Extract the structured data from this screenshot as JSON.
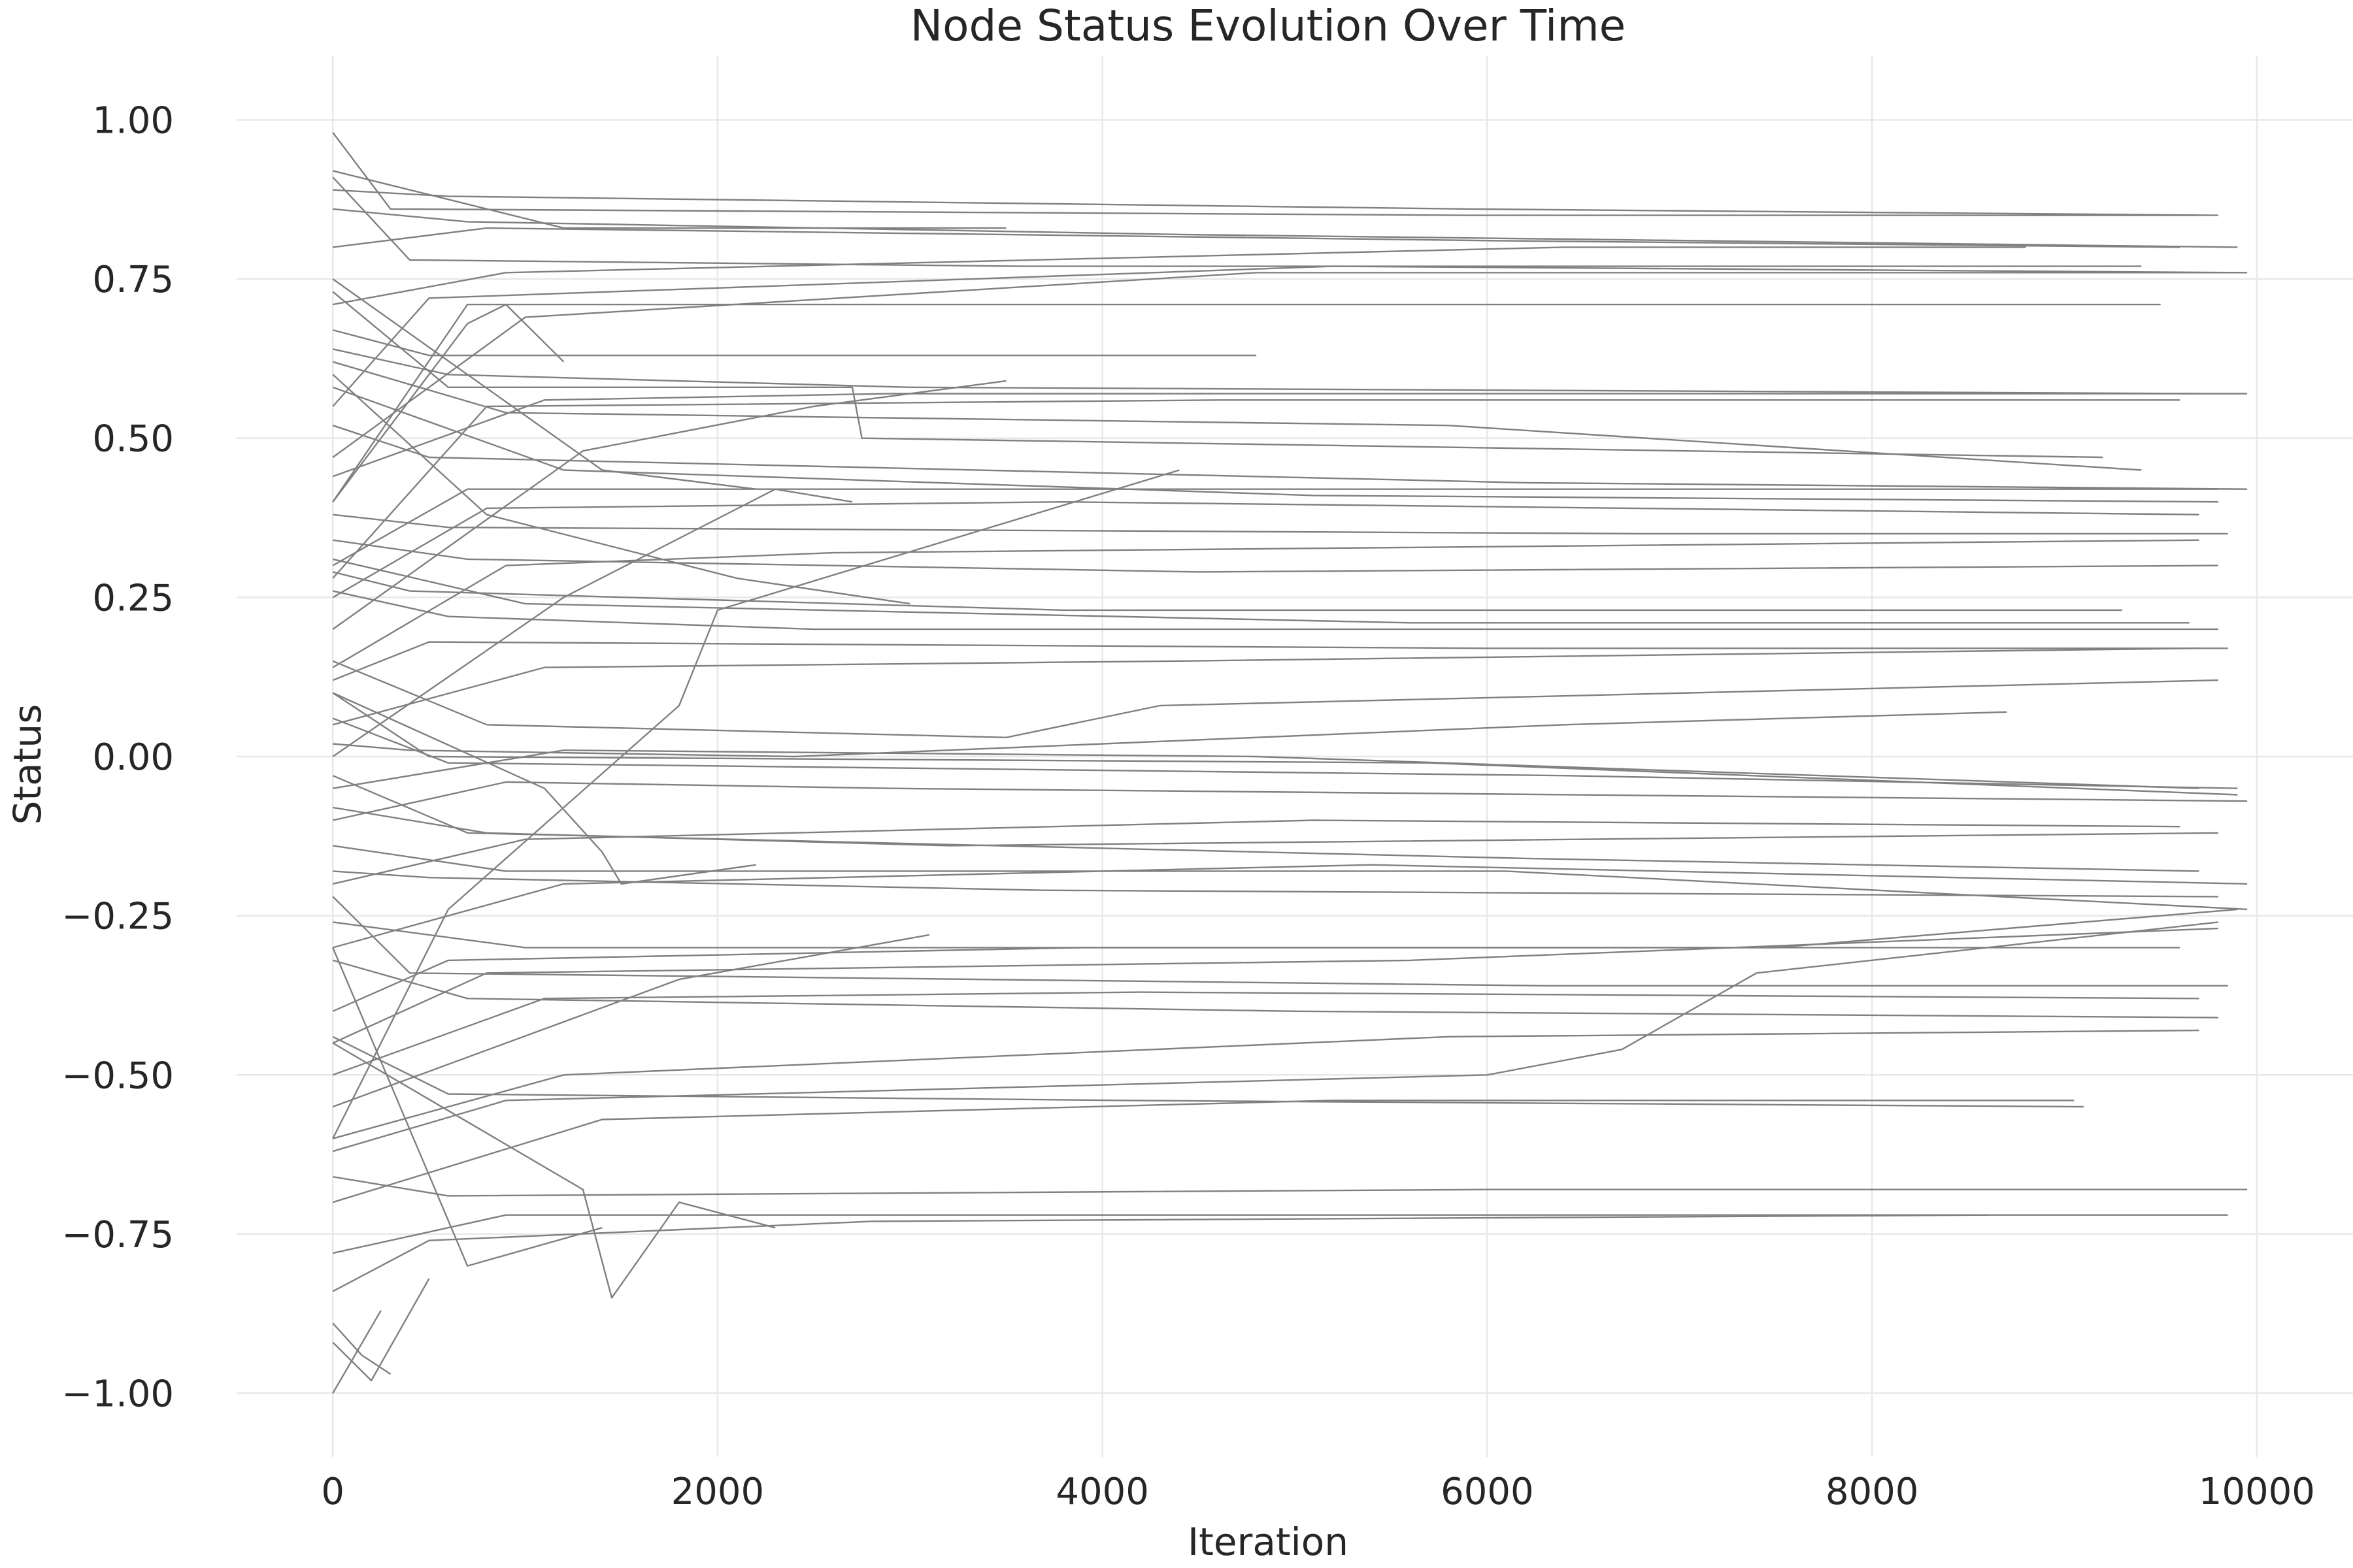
{
  "chart_data": {
    "type": "line",
    "title": "Node Status Evolution Over Time",
    "xlabel": "Iteration",
    "ylabel": "Status",
    "xlim": [
      -500,
      10500
    ],
    "ylim": [
      -1.1,
      1.1
    ],
    "xticks": [
      0,
      2000,
      4000,
      6000,
      8000,
      10000
    ],
    "xtick_labels": [
      "0",
      "2000",
      "4000",
      "6000",
      "8000",
      "10000"
    ],
    "yticks": [
      1.0,
      0.75,
      0.5,
      0.25,
      0.0,
      -0.25,
      -0.5,
      -0.75,
      -1.0
    ],
    "ytick_labels": [
      "1.00",
      "0.75",
      "0.50",
      "0.25",
      "0.00",
      "−0.25",
      "−0.50",
      "−0.75",
      "−1.00"
    ],
    "grid": true,
    "line_color": "#808080",
    "series": [
      {
        "x": [
          0,
          600,
          5900,
          9800
        ],
        "y": [
          0.89,
          0.88,
          0.86,
          0.85
        ]
      },
      {
        "x": [
          0,
          300,
          5900,
          9700
        ],
        "y": [
          0.98,
          0.86,
          0.85,
          0.85
        ]
      },
      {
        "x": [
          0,
          800,
          6100,
          9600
        ],
        "y": [
          0.8,
          0.83,
          0.81,
          0.8
        ]
      },
      {
        "x": [
          0,
          1200,
          3500
        ],
        "y": [
          0.92,
          0.83,
          0.83
        ]
      },
      {
        "x": [
          0,
          700,
          4400,
          9900
        ],
        "y": [
          0.86,
          0.84,
          0.82,
          0.8
        ]
      },
      {
        "x": [
          0,
          900,
          6400,
          8800
        ],
        "y": [
          0.71,
          0.76,
          0.8,
          0.8
        ]
      },
      {
        "x": [
          0,
          500,
          5200,
          9900
        ],
        "y": [
          0.55,
          0.72,
          0.77,
          0.76
        ]
      },
      {
        "x": [
          0,
          400,
          3600,
          9400
        ],
        "y": [
          0.91,
          0.78,
          0.77,
          0.77
        ]
      },
      {
        "x": [
          0,
          1000,
          4800,
          9950
        ],
        "y": [
          0.47,
          0.69,
          0.76,
          0.76
        ]
      },
      {
        "x": [
          0,
          700,
          6500,
          9500
        ],
        "y": [
          0.4,
          0.71,
          0.71,
          0.71
        ]
      },
      {
        "x": [
          0,
          500,
          4800
        ],
        "y": [
          0.67,
          0.63,
          0.63
        ]
      },
      {
        "x": [
          0,
          600,
          3000,
          9700
        ],
        "y": [
          0.64,
          0.6,
          0.58,
          0.57
        ]
      },
      {
        "x": [
          0,
          1100,
          2900,
          9950
        ],
        "y": [
          0.44,
          0.56,
          0.57,
          0.57
        ]
      },
      {
        "x": [
          0,
          800,
          4600,
          9600
        ],
        "y": [
          0.28,
          0.55,
          0.56,
          0.56
        ]
      },
      {
        "x": [
          0,
          600,
          2700,
          2750,
          9200
        ],
        "y": [
          0.73,
          0.58,
          0.58,
          0.5,
          0.47
        ]
      },
      {
        "x": [
          0,
          900,
          5800,
          9400
        ],
        "y": [
          0.62,
          0.54,
          0.52,
          0.45
        ]
      },
      {
        "x": [
          0,
          500,
          6200,
          9950
        ],
        "y": [
          0.52,
          0.47,
          0.43,
          0.42
        ]
      },
      {
        "x": [
          0,
          700,
          4400,
          9800
        ],
        "y": [
          0.3,
          0.42,
          0.42,
          0.42
        ]
      },
      {
        "x": [
          0,
          1200,
          5100,
          9800
        ],
        "y": [
          0.58,
          0.45,
          0.41,
          0.4
        ]
      },
      {
        "x": [
          0,
          800,
          3800,
          9700
        ],
        "y": [
          0.25,
          0.39,
          0.4,
          0.38
        ]
      },
      {
        "x": [
          0,
          600,
          6800,
          9850
        ],
        "y": [
          0.38,
          0.36,
          0.35,
          0.35
        ]
      },
      {
        "x": [
          0,
          900,
          2600,
          9700
        ],
        "y": [
          0.14,
          0.3,
          0.32,
          0.34
        ]
      },
      {
        "x": [
          0,
          700,
          4500,
          9800
        ],
        "y": [
          0.34,
          0.31,
          0.29,
          0.3
        ]
      },
      {
        "x": [
          0,
          400,
          3800,
          9300
        ],
        "y": [
          0.29,
          0.26,
          0.23,
          0.23
        ]
      },
      {
        "x": [
          0,
          1000,
          5600,
          9650
        ],
        "y": [
          0.31,
          0.24,
          0.21,
          0.21
        ]
      },
      {
        "x": [
          0,
          600,
          2500,
          9800
        ],
        "y": [
          0.26,
          0.22,
          0.2,
          0.2
        ]
      },
      {
        "x": [
          0,
          500,
          6000,
          9850
        ],
        "y": [
          0.12,
          0.18,
          0.17,
          0.17
        ]
      },
      {
        "x": [
          0,
          1100,
          4400,
          9700
        ],
        "y": [
          0.05,
          0.14,
          0.15,
          0.17
        ]
      },
      {
        "x": [
          0,
          800,
          3500,
          4300,
          9800
        ],
        "y": [
          0.15,
          0.05,
          0.03,
          0.08,
          0.12
        ]
      },
      {
        "x": [
          0,
          400,
          2400,
          6400,
          8700
        ],
        "y": [
          0.02,
          0.01,
          0.0,
          0.05,
          0.07
        ]
      },
      {
        "x": [
          0,
          1200,
          4800,
          9700
        ],
        "y": [
          -0.05,
          0.01,
          0.0,
          -0.05
        ]
      },
      {
        "x": [
          0,
          600,
          6400,
          9900
        ],
        "y": [
          0.06,
          -0.01,
          -0.03,
          -0.05
        ]
      },
      {
        "x": [
          0,
          900,
          2900,
          9950
        ],
        "y": [
          -0.1,
          -0.04,
          -0.05,
          -0.07
        ]
      },
      {
        "x": [
          0,
          500,
          5700,
          9900
        ],
        "y": [
          0.1,
          0.0,
          -0.01,
          -0.06
        ]
      },
      {
        "x": [
          0,
          1000,
          5100,
          9600
        ],
        "y": [
          -0.2,
          -0.13,
          -0.1,
          -0.11
        ]
      },
      {
        "x": [
          0,
          800,
          3200,
          9800
        ],
        "y": [
          -0.08,
          -0.12,
          -0.14,
          -0.12
        ]
      },
      {
        "x": [
          0,
          700,
          6200,
          9700
        ],
        "y": [
          -0.03,
          -0.12,
          -0.16,
          -0.18
        ]
      },
      {
        "x": [
          0,
          1200,
          5400,
          9950
        ],
        "y": [
          -0.3,
          -0.2,
          -0.17,
          -0.2
        ]
      },
      {
        "x": [
          0,
          500,
          3700,
          9800
        ],
        "y": [
          -0.18,
          -0.19,
          -0.21,
          -0.22
        ]
      },
      {
        "x": [
          0,
          900,
          6100,
          9950
        ],
        "y": [
          -0.14,
          -0.18,
          -0.18,
          -0.24
        ]
      },
      {
        "x": [
          0,
          600,
          3900,
          7500,
          9900
        ],
        "y": [
          -0.4,
          -0.32,
          -0.3,
          -0.3,
          -0.24
        ]
      },
      {
        "x": [
          0,
          1000,
          4500,
          9600
        ],
        "y": [
          -0.26,
          -0.3,
          -0.3,
          -0.3
        ]
      },
      {
        "x": [
          0,
          800,
          5600,
          9800
        ],
        "y": [
          -0.45,
          -0.34,
          -0.32,
          -0.27
        ]
      },
      {
        "x": [
          0,
          400,
          6300,
          9850
        ],
        "y": [
          -0.22,
          -0.34,
          -0.36,
          -0.36
        ]
      },
      {
        "x": [
          0,
          1100,
          4200,
          9700
        ],
        "y": [
          -0.5,
          -0.38,
          -0.37,
          -0.38
        ]
      },
      {
        "x": [
          0,
          700,
          5000,
          9800
        ],
        "y": [
          -0.32,
          -0.38,
          -0.4,
          -0.41
        ]
      },
      {
        "x": [
          0,
          1200,
          5800,
          9700
        ],
        "y": [
          -0.6,
          -0.5,
          -0.44,
          -0.43
        ]
      },
      {
        "x": [
          0,
          900,
          6000,
          6700,
          7400,
          9800
        ],
        "y": [
          -0.62,
          -0.54,
          -0.5,
          -0.46,
          -0.34,
          -0.26
        ]
      },
      {
        "x": [
          0,
          600,
          4100,
          9100
        ],
        "y": [
          -0.44,
          -0.53,
          -0.54,
          -0.55
        ]
      },
      {
        "x": [
          0,
          1400,
          5200,
          9050
        ],
        "y": [
          -0.7,
          -0.57,
          -0.54,
          -0.54
        ]
      },
      {
        "x": [
          0,
          600,
          6000,
          9950
        ],
        "y": [
          -0.66,
          -0.69,
          -0.68,
          -0.68
        ]
      },
      {
        "x": [
          0,
          900,
          5200,
          9850
        ],
        "y": [
          -0.78,
          -0.72,
          -0.72,
          -0.72
        ]
      },
      {
        "x": [
          0,
          500,
          2800,
          8600
        ],
        "y": [
          -0.84,
          -0.76,
          -0.73,
          -0.72
        ]
      },
      {
        "x": [
          0,
          1300,
          1450,
          1800,
          2300
        ],
        "y": [
          -0.45,
          -0.68,
          -0.85,
          -0.7,
          -0.74
        ]
      },
      {
        "x": [
          0,
          700,
          1400
        ],
        "y": [
          -0.3,
          -0.8,
          -0.74
        ]
      },
      {
        "x": [
          0,
          200,
          500
        ],
        "y": [
          -0.92,
          -0.98,
          -0.82
        ]
      },
      {
        "x": [
          0,
          250
        ],
        "y": [
          -1.0,
          -0.87
        ]
      },
      {
        "x": [
          0,
          150,
          300
        ],
        "y": [
          -0.89,
          -0.94,
          -0.97
        ]
      },
      {
        "x": [
          0,
          1100,
          1400,
          1500,
          2200
        ],
        "y": [
          0.1,
          -0.05,
          -0.15,
          -0.2,
          -0.17
        ]
      },
      {
        "x": [
          0,
          600,
          1800,
          2000,
          4400
        ],
        "y": [
          -0.6,
          -0.24,
          0.08,
          0.23,
          0.45
        ]
      },
      {
        "x": [
          0,
          1300,
          2500,
          3500
        ],
        "y": [
          0.2,
          0.48,
          0.55,
          0.59
        ]
      },
      {
        "x": [
          0,
          800,
          2100,
          3000
        ],
        "y": [
          0.6,
          0.38,
          0.28,
          0.24
        ]
      },
      {
        "x": [
          0,
          1200,
          2300,
          2700
        ],
        "y": [
          0.0,
          0.25,
          0.42,
          0.4
        ]
      },
      {
        "x": [
          0,
          1400,
          2200
        ],
        "y": [
          0.75,
          0.45,
          0.42
        ]
      },
      {
        "x": [
          0,
          700,
          900,
          1200
        ],
        "y": [
          0.4,
          0.68,
          0.71,
          0.62
        ]
      },
      {
        "x": [
          0,
          1800,
          3100
        ],
        "y": [
          -0.55,
          -0.35,
          -0.28
        ]
      }
    ]
  }
}
